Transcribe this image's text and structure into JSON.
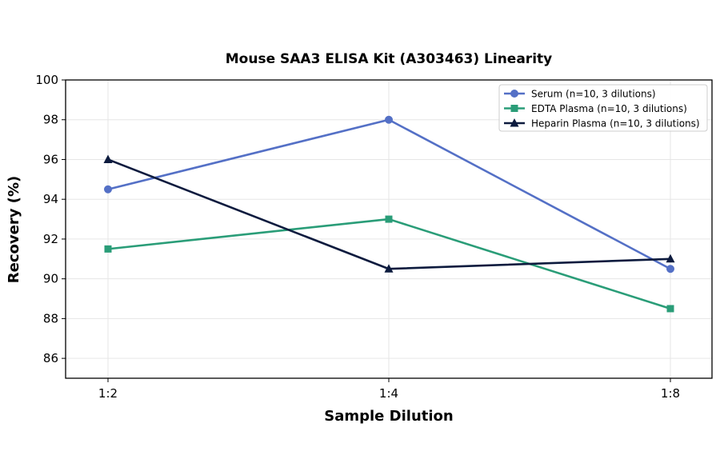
{
  "chart_data": {
    "type": "line",
    "title": "Mouse SAA3 ELISA Kit (A303463) Linearity",
    "xlabel": "Sample Dilution",
    "ylabel": "Recovery (%)",
    "categories": [
      "1:2",
      "1:4",
      "1:8"
    ],
    "ylim": [
      85,
      100
    ],
    "yticks": [
      86,
      88,
      90,
      92,
      94,
      96,
      98,
      100
    ],
    "grid": true,
    "legend_position": "top-right",
    "series": [
      {
        "name": "Serum (n=10, 3 dilutions)",
        "values": [
          94.5,
          98.0,
          90.5
        ],
        "color": "#5470c6",
        "marker": "circle"
      },
      {
        "name": "EDTA Plasma (n=10, 3 dilutions)",
        "values": [
          91.5,
          93.0,
          88.5
        ],
        "color": "#2a9d78",
        "marker": "square"
      },
      {
        "name": "Heparin Plasma (n=10, 3 dilutions)",
        "values": [
          96.0,
          90.5,
          91.0
        ],
        "color": "#0d1b3e",
        "marker": "triangle"
      }
    ]
  }
}
